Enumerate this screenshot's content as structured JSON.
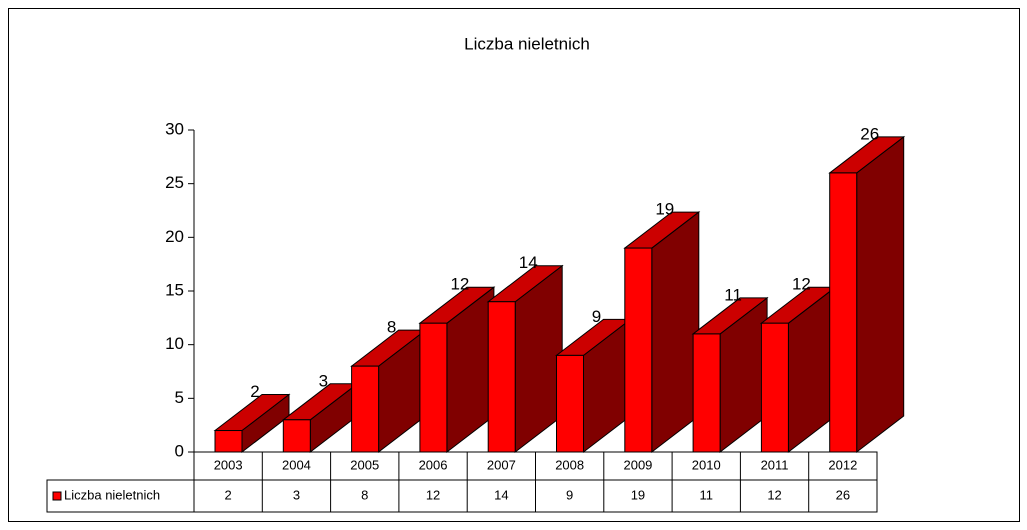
{
  "chart_data": {
    "type": "bar3d",
    "title": "Liczba nieletnich",
    "categories": [
      "2003",
      "2004",
      "2005",
      "2006",
      "2007",
      "2008",
      "2009",
      "2010",
      "2011",
      "2012"
    ],
    "series": [
      {
        "name": "Liczba nieletnich",
        "color": "#ff0000",
        "values": [
          2,
          3,
          8,
          12,
          14,
          9,
          19,
          11,
          12,
          26
        ]
      }
    ],
    "ylim": [
      0,
      30
    ],
    "yticks": [
      0,
      5,
      10,
      15,
      20,
      25,
      30
    ],
    "data_table": true
  }
}
